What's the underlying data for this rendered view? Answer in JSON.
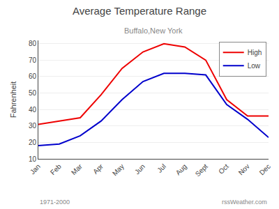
{
  "chart_data": {
    "type": "line",
    "title": "Average Temperature Range",
    "subtitle": "Buffalo,New York",
    "ylabel": "Fahrenheit",
    "categories": [
      "Jan",
      "Feb",
      "Mar",
      "Apr",
      "May",
      "Jun",
      "Jul",
      "Aug",
      "Sept",
      "Oct",
      "Nov",
      "Dec"
    ],
    "series": [
      {
        "name": "High",
        "color": "#ee0000",
        "values": [
          31,
          33,
          35,
          49,
          65,
          75,
          80,
          78,
          70,
          46,
          36,
          36
        ]
      },
      {
        "name": "Low",
        "color": "#0000cc",
        "values": [
          18,
          19,
          24,
          33,
          46,
          57,
          62,
          62,
          61,
          43,
          34,
          23
        ]
      }
    ],
    "ylim": [
      10,
      82
    ],
    "yticks": [
      10,
      20,
      30,
      40,
      50,
      60,
      70,
      80
    ],
    "grid": true,
    "legend": "upper right",
    "annotations": [
      "1971-2000",
      "rssWeather.com"
    ]
  }
}
